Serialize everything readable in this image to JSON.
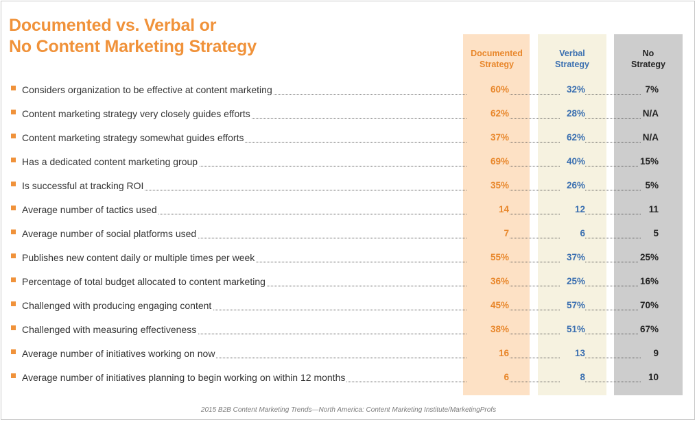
{
  "title_lines": [
    "Documented vs. Verbal or",
    "No Content Marketing Strategy"
  ],
  "source": "2015 B2B Content Marketing Trends—North America: Content Marketing Institute/MarketingProfs",
  "colors": {
    "accent_orange": "#f0923a",
    "documented_text": "#e8862a",
    "verbal_text": "#3a6fb0",
    "none_text": "#222222",
    "documented_bg": "#fde1c5",
    "verbal_bg": "#f6f2e0",
    "none_bg": "#cdcdcd"
  },
  "chart_data": {
    "type": "table",
    "title": "Documented vs. Verbal or No Content Marketing Strategy",
    "columns": [
      {
        "key": "documented",
        "label_lines": [
          "Documented",
          "Strategy"
        ]
      },
      {
        "key": "verbal",
        "label_lines": [
          "Verbal",
          "Strategy"
        ]
      },
      {
        "key": "none",
        "label_lines": [
          "No",
          "Strategy"
        ]
      }
    ],
    "rows": [
      {
        "label": "Considers organization to be effective at content marketing",
        "documented": "60%",
        "verbal": "32%",
        "none": "7%"
      },
      {
        "label": "Content marketing strategy very closely guides efforts",
        "documented": "62%",
        "verbal": "28%",
        "none": "N/A"
      },
      {
        "label": "Content marketing strategy somewhat guides efforts",
        "documented": "37%",
        "verbal": "62%",
        "none": "N/A"
      },
      {
        "label": "Has a dedicated content marketing group",
        "documented": "69%",
        "verbal": "40%",
        "none": "15%"
      },
      {
        "label": "Is successful at tracking ROI",
        "documented": "35%",
        "verbal": "26%",
        "none": "5%"
      },
      {
        "label": "Average number of tactics used",
        "documented": "14",
        "verbal": "12",
        "none": "11"
      },
      {
        "label": "Average number of social platforms used",
        "documented": "7",
        "verbal": "6",
        "none": "5"
      },
      {
        "label": "Publishes new content daily or multiple times per week",
        "documented": "55%",
        "verbal": "37%",
        "none": "25%"
      },
      {
        "label": "Percentage of total budget allocated to content marketing",
        "documented": "36%",
        "verbal": "25%",
        "none": "16%"
      },
      {
        "label": "Challenged with producing engaging content",
        "documented": "45%",
        "verbal": "57%",
        "none": "70%"
      },
      {
        "label": "Challenged with measuring effectiveness",
        "documented": "38%",
        "verbal": "51%",
        "none": "67%"
      },
      {
        "label": "Average number of initiatives working on now",
        "documented": "16",
        "verbal": "13",
        "none": "9"
      },
      {
        "label": "Average number of initiatives planning to begin working on within 12 months",
        "documented": "6",
        "verbal": "8",
        "none": "10"
      }
    ]
  }
}
